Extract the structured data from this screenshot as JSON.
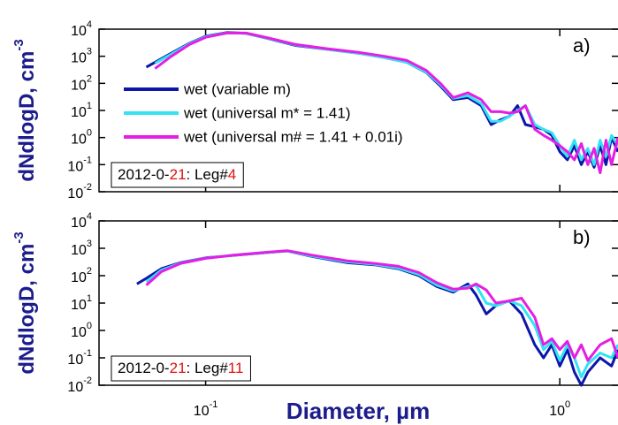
{
  "chart_data": [
    {
      "type": "line",
      "panel_label": "a)",
      "ylabel": "dNdlogD, cm",
      "ylabel_sup": "-3",
      "log_x": true,
      "log_y": true,
      "xlim": [
        0.05,
        1.46
      ],
      "ylim": [
        0.01,
        10000
      ],
      "xticks": [
        0.1,
        1
      ],
      "yticks": [
        {
          "value": 0.01,
          "label": "10",
          "sup": "-2"
        },
        {
          "value": 0.1,
          "label": "10",
          "sup": "-1"
        },
        {
          "value": 1,
          "label": "10",
          "sup": "0"
        },
        {
          "value": 10,
          "label": "10",
          "sup": "1"
        },
        {
          "value": 100,
          "label": "10",
          "sup": "2"
        },
        {
          "value": 1000,
          "label": "10",
          "sup": "3"
        },
        {
          "value": 10000,
          "label": "10",
          "sup": "4"
        }
      ],
      "annotation": [
        {
          "text": "2012-0-",
          "color": "#000000"
        },
        {
          "text": "21",
          "color": "#e01010"
        },
        {
          "text": ": Leg#",
          "color": "#000000"
        },
        {
          "text": "4",
          "color": "#e01010"
        }
      ],
      "legend": true,
      "x": [
        0.068,
        0.072,
        0.08,
        0.09,
        0.1,
        0.115,
        0.13,
        0.15,
        0.18,
        0.22,
        0.27,
        0.32,
        0.37,
        0.42,
        0.46,
        0.5,
        0.55,
        0.6,
        0.64,
        0.68,
        0.72,
        0.76,
        0.8,
        0.85,
        0.9,
        0.95,
        1.0,
        1.05,
        1.1,
        1.15,
        1.2,
        1.25,
        1.3,
        1.35,
        1.4,
        1.46
      ],
      "series": [
        {
          "name": "wet (variable m)",
          "color": "#0c16a8",
          "values": [
            400,
            600,
            1300,
            3000,
            5500,
            7500,
            7000,
            4500,
            2500,
            1800,
            1300,
            900,
            600,
            250,
            80,
            25,
            30,
            15,
            3,
            4.5,
            6,
            15,
            3,
            2.5,
            2,
            1.2,
            0.3,
            0.15,
            0.5,
            0.1,
            0.3,
            0.08,
            0.5,
            0.1,
            1,
            0.3
          ]
        },
        {
          "name": "wet (universal m* = 1.41)",
          "color": "#33e3f2",
          "values": [
            null,
            550,
            1200,
            2900,
            5300,
            7300,
            7000,
            4600,
            2600,
            1800,
            1300,
            900,
            600,
            260,
            90,
            28,
            35,
            18,
            4,
            4,
            6,
            10,
            15,
            3,
            2,
            1.5,
            0.5,
            0.2,
            0.8,
            0.15,
            0.4,
            0.1,
            0.8,
            0.2,
            1.2,
            0.5
          ]
        },
        {
          "name": "wet (universal m# = 1.41 + 0.01i)",
          "color": "#e41ee4",
          "values": [
            null,
            350,
            1000,
            2700,
            5000,
            7200,
            7200,
            4800,
            2700,
            1900,
            1400,
            1000,
            700,
            300,
            100,
            30,
            45,
            25,
            9,
            9,
            8,
            9,
            15,
            2,
            1.2,
            0.8,
            0.5,
            0.3,
            0.15,
            0.6,
            0.1,
            0.4,
            0.05,
            0.8,
            0.1,
            1
          ]
        }
      ]
    },
    {
      "type": "line",
      "panel_label": "b)",
      "ylabel": "dNdlogD, cm",
      "ylabel_sup": "-3",
      "xlabel": "Diameter, µm",
      "log_x": true,
      "log_y": true,
      "xlim": [
        0.05,
        1.46
      ],
      "ylim": [
        0.01,
        10000
      ],
      "xticks": [
        {
          "value": 0.1,
          "label": "10",
          "sup": "-1"
        },
        {
          "value": 1,
          "label": "10",
          "sup": "0"
        }
      ],
      "yticks": [
        {
          "value": 0.01,
          "label": "10",
          "sup": "-2"
        },
        {
          "value": 0.1,
          "label": "10",
          "sup": "-1"
        },
        {
          "value": 1,
          "label": "10",
          "sup": "0"
        },
        {
          "value": 10,
          "label": "10",
          "sup": "1"
        },
        {
          "value": 100,
          "label": "10",
          "sup": "2"
        },
        {
          "value": 1000,
          "label": "10",
          "sup": "3"
        },
        {
          "value": 10000,
          "label": "10",
          "sup": "4"
        }
      ],
      "annotation": [
        {
          "text": "2012-0-",
          "color": "#000000"
        },
        {
          "text": "21",
          "color": "#e01010"
        },
        {
          "text": ": Leg#",
          "color": "#000000"
        },
        {
          "text": "11",
          "color": "#e01010"
        }
      ],
      "legend": false,
      "x": [
        0.064,
        0.068,
        0.075,
        0.085,
        0.1,
        0.12,
        0.15,
        0.17,
        0.2,
        0.25,
        0.3,
        0.35,
        0.4,
        0.45,
        0.5,
        0.55,
        0.58,
        0.62,
        0.66,
        0.72,
        0.78,
        0.85,
        0.9,
        0.95,
        1.0,
        1.05,
        1.1,
        1.15,
        1.2,
        1.3,
        1.4,
        1.46
      ],
      "series": [
        {
          "name": "wet (variable m)",
          "color": "#0c16a8",
          "values": [
            50,
            80,
            180,
            300,
            450,
            550,
            700,
            800,
            500,
            300,
            250,
            180,
            100,
            40,
            25,
            50,
            20,
            4,
            8,
            12,
            4,
            0.3,
            0.1,
            0.3,
            0.05,
            0.2,
            0.03,
            0.01,
            0.03,
            0.1,
            0.05,
            0.2
          ]
        },
        {
          "name": "wet (universal m* = 1.41)",
          "color": "#33e3f2",
          "values": [
            null,
            60,
            160,
            290,
            440,
            560,
            700,
            800,
            520,
            320,
            260,
            190,
            110,
            45,
            28,
            40,
            45,
            10,
            8,
            12,
            8,
            1.5,
            0.2,
            0.4,
            0.08,
            0.3,
            0.1,
            0.02,
            0.06,
            0.15,
            0.1,
            0.3
          ]
        },
        {
          "name": "wet (universal m# = 1.41 + 0.01i)",
          "color": "#e41ee4",
          "values": [
            null,
            45,
            140,
            280,
            430,
            560,
            720,
            820,
            560,
            350,
            280,
            220,
            130,
            55,
            32,
            35,
            50,
            30,
            10,
            12,
            15,
            3,
            0.3,
            0.5,
            0.2,
            0.4,
            0.1,
            0.3,
            0.08,
            0.3,
            0.5,
            0.1
          ]
        }
      ]
    }
  ]
}
